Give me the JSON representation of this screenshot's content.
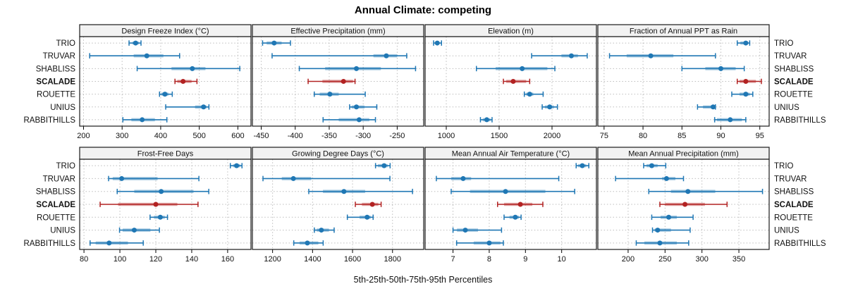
{
  "title": "Annual Climate: competing",
  "xlabel": "5th-25th-50th-75th-95th Percentiles",
  "colors": {
    "normal": "#1f77b4",
    "highlight": "#b22222",
    "strip_bg": "#f2f2f2",
    "border": "#1a1a1a",
    "grid": "#bdbdbd"
  },
  "chart_data": {
    "type": "dot-whisker-trellis",
    "layout": "2x4",
    "grid": "dotted",
    "percentiles": [
      5,
      25,
      50,
      75,
      95
    ],
    "sites": [
      "TRIO",
      "TRUVAR",
      "SHABLISS",
      "SCALADE",
      "ROUETTE",
      "UNIUS",
      "RABBITHILLS"
    ],
    "highlight_site": "SCALADE",
    "panels": [
      {
        "title": "Design Freeze Index (°C)",
        "ticks": [
          200,
          300,
          400,
          500,
          600
        ],
        "domain": [
          190,
          634
        ],
        "values": [
          [
            318,
            327,
            335,
            343,
            349
          ],
          [
            216,
            330,
            364,
            407,
            449
          ],
          [
            339,
            428,
            482,
            516,
            605
          ],
          [
            437,
            443,
            458,
            480,
            494
          ],
          [
            397,
            402,
            411,
            420,
            430
          ],
          [
            413,
            489,
            511,
            519,
            525
          ],
          [
            302,
            324,
            352,
            385,
            416
          ]
        ]
      },
      {
        "title": "Effective Precipitation (mm)",
        "ticks": [
          -450,
          -400,
          -350,
          -300,
          -250
        ],
        "domain": [
          -463,
          -211
        ],
        "values": [
          [
            -448,
            -442,
            -431,
            -420,
            -407
          ],
          [
            -434,
            -285,
            -266,
            -250,
            -236
          ],
          [
            -394,
            -356,
            -310,
            -274,
            -223
          ],
          [
            -381,
            -360,
            -329,
            -315,
            -312
          ],
          [
            -372,
            -364,
            -349,
            -336,
            -297
          ],
          [
            -320,
            -317,
            -310,
            -298,
            -280
          ],
          [
            -359,
            -336,
            -306,
            -291,
            -282
          ]
        ]
      },
      {
        "title": "Elevation (m)",
        "ticks": [
          1000,
          1500,
          2000
        ],
        "domain": [
          800,
          2420
        ],
        "values": [
          [
            880,
            900,
            915,
            930,
            955
          ],
          [
            1807,
            2089,
            2183,
            2245,
            2333
          ],
          [
            1285,
            1467,
            1718,
            1956,
            2027
          ],
          [
            1540,
            1567,
            1633,
            1756,
            1789
          ],
          [
            1738,
            1756,
            1789,
            1823,
            1916
          ],
          [
            1907,
            1933,
            1978,
            2018,
            2051
          ],
          [
            1323,
            1345,
            1383,
            1418,
            1433
          ]
        ]
      },
      {
        "title": "Fraction of Annual PPT as Rain",
        "ticks": [
          75,
          80,
          85,
          90,
          95
        ],
        "domain": [
          74.2,
          96.2
        ],
        "values": [
          [
            92.1,
            92.5,
            93.2,
            93.5,
            93.7
          ],
          [
            75.7,
            77.9,
            81,
            83.9,
            89.3
          ],
          [
            85,
            88,
            90,
            91.9,
            93
          ],
          [
            92.1,
            92.4,
            93.2,
            94.5,
            95.2
          ],
          [
            91.4,
            92.4,
            93.2,
            93.7,
            94.1
          ],
          [
            87,
            87.7,
            89,
            89.2,
            89.3
          ],
          [
            89.2,
            89.5,
            91.2,
            92.7,
            93.2
          ]
        ]
      },
      {
        "title": "Frost-Free Days",
        "ticks": [
          80,
          100,
          120,
          140,
          160
        ],
        "domain": [
          77.6,
          173
        ],
        "values": [
          [
            161.5,
            163,
            165,
            167,
            168
          ],
          [
            93.7,
            96,
            101,
            121,
            144
          ],
          [
            98.5,
            108,
            123,
            141,
            149.5
          ],
          [
            89,
            99,
            120,
            132,
            143.5
          ],
          [
            116.8,
            119,
            122.5,
            125,
            126.5
          ],
          [
            99.8,
            101.5,
            108,
            117,
            122
          ],
          [
            83.4,
            86.5,
            94,
            104.5,
            113
          ]
        ]
      },
      {
        "title": "Growing Degree Days (°C)",
        "ticks": [
          1200,
          1400,
          1600,
          1800
        ],
        "domain": [
          1099,
          1956
        ],
        "values": [
          [
            1715,
            1727,
            1758,
            1776,
            1788
          ],
          [
            1152,
            1246,
            1304,
            1393,
            1787
          ],
          [
            1381,
            1452,
            1557,
            1663,
            1900
          ],
          [
            1614,
            1647,
            1699,
            1729,
            1743
          ],
          [
            1574,
            1635,
            1673,
            1691,
            1703
          ],
          [
            1409,
            1421,
            1444,
            1482,
            1508
          ],
          [
            1306,
            1335,
            1374,
            1429,
            1453
          ]
        ]
      },
      {
        "title": "Mean Annual Air Temperature (°C)",
        "ticks": [
          7,
          8,
          9,
          10
        ],
        "domain": [
          6.23,
          10.96
        ],
        "values": [
          [
            10.4,
            10.45,
            10.57,
            10.68,
            10.75
          ],
          [
            6.54,
            6.95,
            7.28,
            7.5,
            9.92
          ],
          [
            6.95,
            7.47,
            8.45,
            9.55,
            10.36
          ],
          [
            8.23,
            8.41,
            8.86,
            9.19,
            9.48
          ],
          [
            8.41,
            8.56,
            8.72,
            8.82,
            8.88
          ],
          [
            7,
            7.11,
            7.34,
            7.69,
            8.34
          ],
          [
            7.1,
            7.57,
            8,
            8.31,
            8.39
          ]
        ]
      },
      {
        "title": "Mean Annual Precipitation (mm)",
        "ticks": [
          200,
          250,
          300,
          350
        ],
        "domain": [
          159,
          391
        ],
        "values": [
          [
            221,
            225,
            232,
            240,
            251
          ],
          [
            183,
            246,
            252,
            264,
            275
          ],
          [
            228,
            258,
            281,
            318,
            382
          ],
          [
            243,
            250,
            277,
            304,
            334
          ],
          [
            232,
            244,
            255,
            266,
            288
          ],
          [
            233,
            236,
            240,
            258,
            284
          ],
          [
            211,
            222,
            243,
            266,
            282
          ]
        ]
      }
    ]
  }
}
